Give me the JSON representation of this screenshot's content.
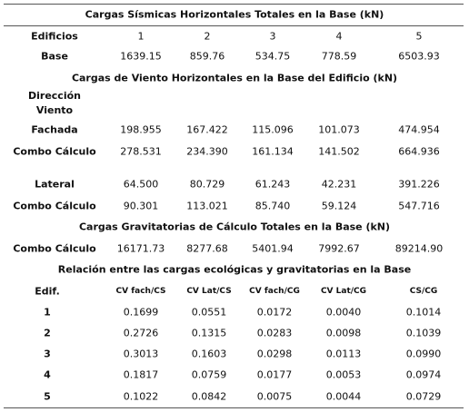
{
  "sections": [
    {
      "title": "Cargas Sísmicas Horizontales Totales en la Base (kN)",
      "rows": [
        [
          "Edificios",
          "1",
          "2",
          "3",
          "4",
          "5"
        ],
        [
          "Base",
          "1639.15",
          "859.76",
          "534.75",
          "778.59",
          "6503.93"
        ]
      ]
    },
    {
      "title": "Cargas de Viento Horizontales en la Base del Edificio (kN)",
      "rows": [
        [
          "Dirección Viento"
        ],
        [
          "Fachada",
          "198.955",
          "167.422",
          "115.096",
          "101.073",
          "474.954"
        ],
        [
          "Combo Cálculo",
          "278.531",
          "234.390",
          "161.134",
          "141.502",
          "664.936"
        ],
        [
          "Lateral",
          "64.500",
          "80.729",
          "61.243",
          "42.231",
          "391.226"
        ],
        [
          "Combo Cálculo",
          "90.301",
          "113.021",
          "85.740",
          "59.124",
          "547.716"
        ]
      ]
    },
    {
      "title": "Cargas Gravitatorias de Cálculo Totales en la Base (kN)",
      "rows": [
        [
          "Combo Cálculo",
          "16171.73",
          "8277.68",
          "5401.94",
          "7992.67",
          "89214.90"
        ]
      ]
    },
    {
      "title": "Relación entre las cargas ecológicas y gravitatorias en la Base",
      "rows": [
        [
          "Edif.",
          "CV fach/CS",
          "CV Lat/CS",
          "CV fach/CG",
          "CV Lat/CG",
          "CS/CG"
        ],
        [
          "1",
          "0.1699",
          "0.0551",
          "0.0172",
          "0.0040",
          "0.1014"
        ],
        [
          "2",
          "0.2726",
          "0.1315",
          "0.0283",
          "0.0098",
          "0.1039"
        ],
        [
          "3",
          "0.3013",
          "0.1603",
          "0.0298",
          "0.0113",
          "0.0990"
        ],
        [
          "4",
          "0.1817",
          "0.0759",
          "0.0177",
          "0.0053",
          "0.0974"
        ],
        [
          "5",
          "0.1022",
          "0.0842",
          "0.0075",
          "0.0044",
          "0.0729"
        ]
      ]
    }
  ]
}
